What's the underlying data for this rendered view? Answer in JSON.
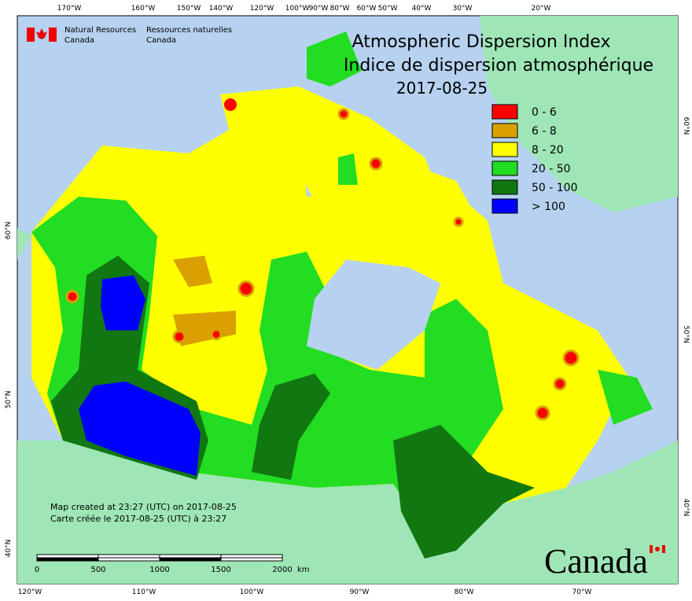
{
  "header": {
    "agency_en": [
      "Natural Resources",
      "Canada"
    ],
    "agency_fr": [
      "Ressources naturelles",
      "Canada"
    ]
  },
  "title": [
    "Atmospheric Dispersion Index",
    "Indice de dispersion atmosphérique",
    "2017-08-25"
  ],
  "legend": [
    {
      "label": "0 - 6",
      "color": "#ff0000"
    },
    {
      "label": "6 - 8",
      "color": "#d9a000"
    },
    {
      "label": "8 - 20",
      "color": "#ffff00"
    },
    {
      "label": "20 - 50",
      "color": "#22dd22"
    },
    {
      "label": "50 - 100",
      "color": "#117711"
    },
    {
      "label": "> 100",
      "color": "#0000ff"
    }
  ],
  "top_labels": [
    "170°W",
    "160°W",
    "150°W",
    "140°W",
    "120°W",
    "100°W",
    "90°W",
    "80°W",
    "60°W",
    "50°W",
    "40°W",
    "30°W",
    "20°W"
  ],
  "bottom_labels": [
    "120°W",
    "110°W",
    "100°W",
    "90°W",
    "80°W",
    "70°W"
  ],
  "left_labels": [
    "60°N",
    "50°N",
    "40°N"
  ],
  "right_labels": [
    "60°N",
    "50°N",
    "40°N"
  ],
  "notes": [
    "Map created at 23:27 (UTC) on 2017-08-25",
    "Carte créée le 2017-08-25 (UTC) à 23:27"
  ],
  "scale": {
    "labels": [
      "0",
      "500",
      "1000",
      "1500",
      "2000"
    ],
    "unit": "km"
  },
  "wordmark": "Canada"
}
